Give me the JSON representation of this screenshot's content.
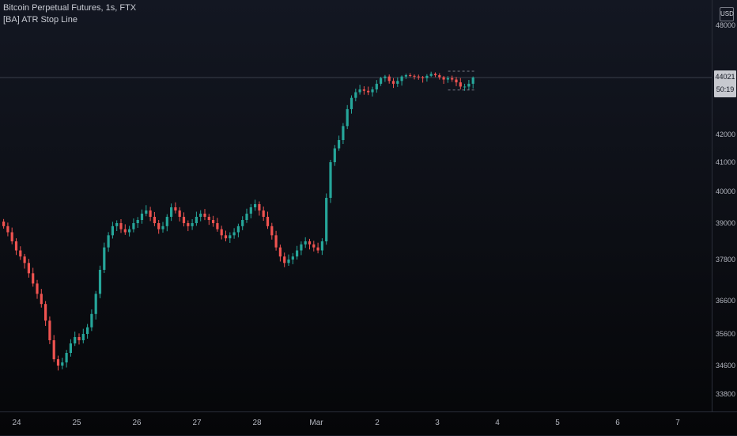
{
  "legend": {
    "symbol": "Bitcoin Perpetual Futures, 1s, FTX",
    "indicator": "[BA] ATR Stop Line"
  },
  "price_axis": {
    "currency": "USD",
    "ticks": [
      "48000",
      "42000",
      "41000",
      "40000",
      "39000",
      "37800",
      "36600",
      "35600",
      "34600",
      "33800"
    ],
    "last_price": "44021",
    "countdown": "50:19"
  },
  "time_axis": {
    "ticks": [
      "24",
      "25",
      "26",
      "27",
      "28",
      "Mar",
      "2",
      "3",
      "4",
      "5",
      "6",
      "7"
    ]
  },
  "colors": {
    "up": "#26a69a",
    "down": "#ef5350",
    "background": "#131722",
    "grid": "#2a2e39",
    "stop_line": "#787b86"
  },
  "chart_data": {
    "type": "candlestick",
    "title": "Bitcoin Perpetual Futures, 1s, FTX",
    "indicator": "[BA] ATR Stop Line",
    "currency": "USD",
    "x_start_label": "24",
    "x_day_labels": [
      "24",
      "25",
      "26",
      "27",
      "28",
      "Mar",
      "2",
      "3",
      "4",
      "5",
      "6",
      "7"
    ],
    "y_ticks": [
      48000,
      42000,
      41000,
      40000,
      39000,
      37800,
      36600,
      35600,
      34600,
      33800
    ],
    "last_price": 44021,
    "close_series": [
      38900,
      38700,
      38400,
      38100,
      37900,
      37700,
      37400,
      37100,
      36800,
      36500,
      36000,
      35400,
      34800,
      34600,
      34700,
      35000,
      35300,
      35500,
      35400,
      35600,
      35800,
      36200,
      36800,
      37500,
      38200,
      38600,
      38900,
      39000,
      38800,
      38700,
      38800,
      39000,
      39100,
      39300,
      39400,
      39200,
      39000,
      38800,
      38900,
      39200,
      39500,
      39400,
      39200,
      39000,
      38900,
      39000,
      39200,
      39300,
      39200,
      39100,
      39000,
      38800,
      38600,
      38500,
      38600,
      38700,
      38900,
      39100,
      39300,
      39500,
      39600,
      39400,
      39200,
      38900,
      38600,
      38200,
      37900,
      37700,
      37800,
      37900,
      38100,
      38300,
      38400,
      38300,
      38200,
      38100,
      38400,
      39800,
      41000,
      41500,
      41800,
      42300,
      42900,
      43300,
      43500,
      43600,
      43550,
      43500,
      43600,
      43800,
      44000,
      44100,
      43900,
      43800,
      43900,
      44100,
      44200,
      44150,
      44100,
      44050,
      44000,
      44150,
      44300,
      44200,
      44050,
      43950,
      44000,
      43950,
      43850,
      43700,
      43700,
      43800,
      44021
    ],
    "atr_stop_line": {
      "upper": 44500,
      "lower": 43580
    }
  }
}
